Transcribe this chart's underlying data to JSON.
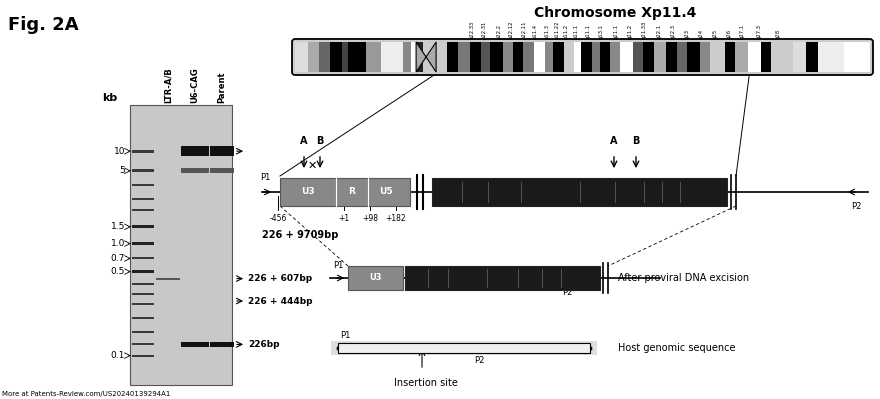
{
  "title": "Chromosome Xp11.4",
  "fig_label": "Fig. 2A",
  "footer_text": "More at Patents-Review.com/US20240139294A1",
  "bg": "#ffffff",
  "gel_bg": "#b8b8b8",
  "lane_labels": [
    "LTR-A/B",
    "U6-CAG",
    "Parent"
  ],
  "kb_labels": [
    "10",
    "5",
    "1.5",
    "1.0",
    "0.7",
    "0.5",
    "0.1"
  ],
  "band_labels_chrom": [
    [
      "p22.33",
      0.308
    ],
    [
      "p22.31",
      0.328
    ],
    [
      "p22.2",
      0.355
    ],
    [
      "p22.12",
      0.375
    ],
    [
      "p22.11",
      0.398
    ],
    [
      "p11.4",
      0.418
    ],
    [
      "p11.3",
      0.438
    ],
    [
      "p11.22",
      0.456
    ],
    [
      "p11.2",
      0.472
    ],
    [
      "p11.1",
      0.488
    ],
    [
      "q11.1",
      0.51
    ],
    [
      "q13.1",
      0.533
    ],
    [
      "q21.1",
      0.558
    ],
    [
      "q21.2",
      0.583
    ],
    [
      "q21.33",
      0.607
    ],
    [
      "q22.1",
      0.634
    ],
    [
      "q22.3",
      0.658
    ],
    [
      "q23",
      0.682
    ],
    [
      "q24",
      0.706
    ],
    [
      "q25",
      0.73
    ],
    [
      "q26",
      0.755
    ],
    [
      "q27.1",
      0.778
    ],
    [
      "q27.3",
      0.808
    ],
    [
      "q28",
      0.84
    ]
  ]
}
